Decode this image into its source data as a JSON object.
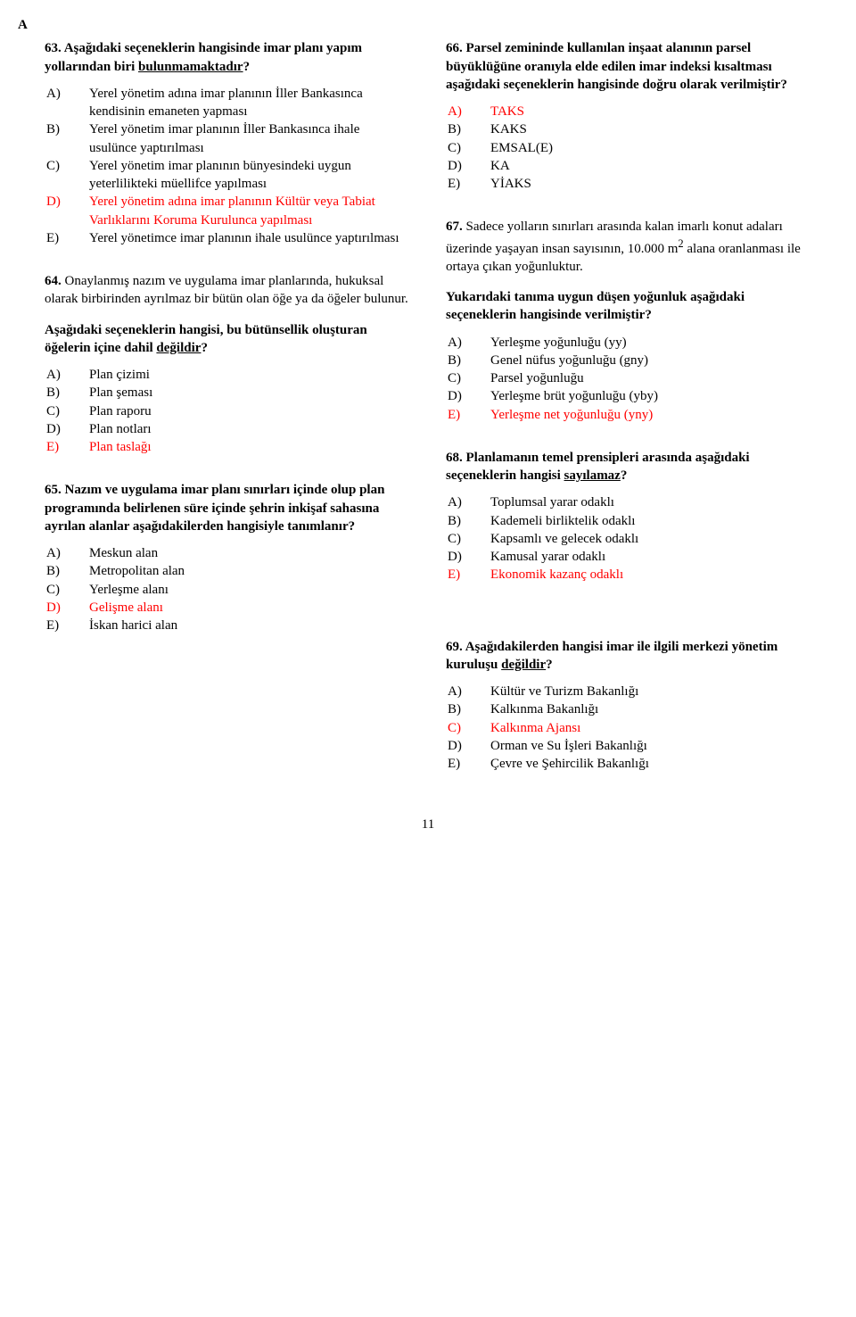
{
  "pageMarker": "A",
  "pageNumber": "11",
  "questions": {
    "q63": {
      "num": "63.",
      "stem": "Aşağıdaki seçeneklerin hangisinde imar planı yapım yollarından biri <u>bulunmamaktadır</u>?",
      "opts": [
        {
          "l": "A)",
          "t": "Yerel yönetim adına imar planının İller Bankasınca kendisinin emaneten yapması",
          "red": false
        },
        {
          "l": "B)",
          "t": "Yerel yönetim imar planının İller Bankasınca ihale usulünce yaptırılması",
          "red": false
        },
        {
          "l": "C)",
          "t": "Yerel yönetim imar planının bünyesindeki uygun yeterlilikteki müellifce yapılması",
          "red": false
        },
        {
          "l": "D)",
          "t": "Yerel yönetim adına imar planının Kültür veya Tabiat Varlıklarını Koruma Kurulunca yapılması",
          "red": true
        },
        {
          "l": "E)",
          "t": "Yerel yönetimce imar planının ihale usulünce yaptırılması",
          "red": false
        }
      ]
    },
    "q64": {
      "num": "64.",
      "intro": "Onaylanmış nazım ve uygulama imar planlarında, hukuksal olarak birbirinden ayrılmaz bir bütün olan öğe ya da öğeler bulunur.",
      "stem": "Aşağıdaki seçeneklerin hangisi, bu bütünsellik oluşturan öğelerin içine dahil <u>değildir</u>?",
      "opts": [
        {
          "l": "A)",
          "t": "Plan çizimi",
          "red": false
        },
        {
          "l": "B)",
          "t": "Plan şeması",
          "red": false
        },
        {
          "l": "C)",
          "t": "Plan raporu",
          "red": false
        },
        {
          "l": "D)",
          "t": "Plan notları",
          "red": false
        },
        {
          "l": "E)",
          "t": "Plan taslağı",
          "red": true
        }
      ]
    },
    "q65": {
      "num": "65.",
      "stem": "Nazım ve uygulama imar planı sınırları içinde olup plan programında belirlenen süre içinde şehrin inkişaf sahasına ayrılan alanlar aşağıdakilerden hangisiyle tanımlanır?",
      "opts": [
        {
          "l": "A)",
          "t": "Meskun alan",
          "red": false
        },
        {
          "l": "B)",
          "t": "Metropolitan alan",
          "red": false
        },
        {
          "l": "C)",
          "t": "Yerleşme alanı",
          "red": false
        },
        {
          "l": "D)",
          "t": "Gelişme alanı",
          "red": true
        },
        {
          "l": "E)",
          "t": "İskan harici alan",
          "red": false
        }
      ]
    },
    "q66": {
      "num": "66.",
      "stem": "Parsel zemininde kullanılan inşaat alanının parsel büyüklüğüne oranıyla elde edilen imar indeksi kısaltması aşağıdaki seçeneklerin hangisinde doğru olarak verilmiştir?",
      "opts": [
        {
          "l": "A)",
          "t": "TAKS",
          "red": true
        },
        {
          "l": "B)",
          "t": "KAKS",
          "red": false
        },
        {
          "l": "C)",
          "t": "EMSAL(E)",
          "red": false
        },
        {
          "l": "D)",
          "t": "KA",
          "red": false
        },
        {
          "l": "E)",
          "t": "YİAKS",
          "red": false
        }
      ]
    },
    "q67": {
      "num": "67.",
      "intro": "Sadece yolların sınırları arasında kalan imarlı konut adaları üzerinde yaşayan insan sayısının, 10.000 m<sup>2</sup> alana oranlanması ile ortaya çıkan yoğunluktur.",
      "stem": "Yukarıdaki tanıma uygun düşen yoğunluk aşağıdaki seçeneklerin hangisinde verilmiştir?",
      "opts": [
        {
          "l": "A)",
          "t": "Yerleşme yoğunluğu (yy)",
          "red": false
        },
        {
          "l": "B)",
          "t": "Genel nüfus yoğunluğu (gny)",
          "red": false
        },
        {
          "l": "C)",
          "t": "Parsel yoğunluğu",
          "red": false
        },
        {
          "l": "D)",
          "t": "Yerleşme brüt yoğunluğu (yby)",
          "red": false
        },
        {
          "l": "E)",
          "t": "Yerleşme net yoğunluğu (yny)",
          "red": true
        }
      ]
    },
    "q68": {
      "num": "68.",
      "stem": "Planlamanın temel prensipleri arasında aşağıdaki seçeneklerin hangisi <u>sayılamaz</u>?",
      "opts": [
        {
          "l": "A)",
          "t": "Toplumsal yarar odaklı",
          "red": false
        },
        {
          "l": "B)",
          "t": "Kademeli birliktelik odaklı",
          "red": false
        },
        {
          "l": "C)",
          "t": "Kapsamlı ve gelecek odaklı",
          "red": false
        },
        {
          "l": "D)",
          "t": "Kamusal yarar odaklı",
          "red": false
        },
        {
          "l": "E)",
          "t": "Ekonomik kazanç odaklı",
          "red": true
        }
      ]
    },
    "q69": {
      "num": "69.",
      "stem": "Aşağıdakilerden hangisi imar ile ilgili merkezi yönetim kuruluşu <u>değildir</u>?",
      "opts": [
        {
          "l": "A)",
          "t": "Kültür ve Turizm Bakanlığı",
          "red": false
        },
        {
          "l": "B)",
          "t": "Kalkınma Bakanlığı",
          "red": false
        },
        {
          "l": "C)",
          "t": "Kalkınma Ajansı",
          "red": true
        },
        {
          "l": "D)",
          "t": "Orman ve Su İşleri Bakanlığı",
          "red": false
        },
        {
          "l": "E)",
          "t": "Çevre ve Şehircilik Bakanlığı",
          "red": false
        }
      ]
    }
  }
}
